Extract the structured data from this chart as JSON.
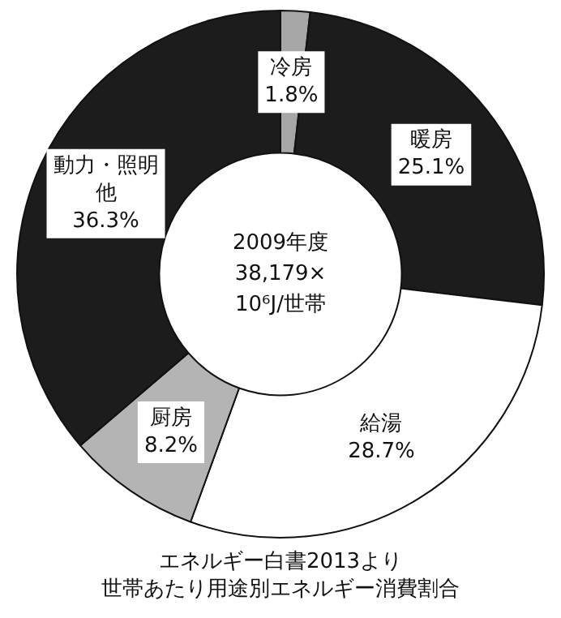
{
  "chart_data": {
    "type": "donut",
    "title": "世帯あたり用途別エネルギー消費割合",
    "categories": [
      "冷房",
      "暖房",
      "給湯",
      "厨房",
      "動力・照明他"
    ],
    "values": [
      1.8,
      25.1,
      28.7,
      8.2,
      36.3
    ],
    "value_labels": [
      "1.8%",
      "25.1%",
      "28.7%",
      "8.2%",
      "36.3%"
    ],
    "colors": [
      "#a6a6a6",
      "#1c1c1c",
      "#ffffff",
      "#b4b4b4",
      "#1c1c1c"
    ],
    "annotations": [
      "2009年度",
      "38,179×",
      "10⁶J/世帯",
      "エネルギー白書2013より"
    ],
    "legend": false
  }
}
